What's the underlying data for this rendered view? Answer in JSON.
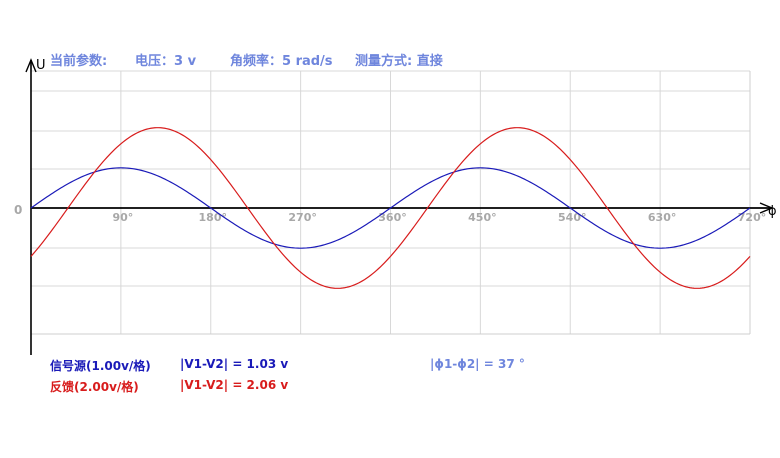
{
  "header": {
    "params_label": "当前参数:",
    "voltage": "电压：3 v",
    "angular_freq": "角频率：5 rad/s",
    "measure_mode": "测量方式: 直接"
  },
  "footer": {
    "signal_label": "信号源(1.00v/格)",
    "signal_diff": "|V1-V2| = 1.03 v",
    "feedback_label": "反馈(2.00v/格)",
    "feedback_diff": "|V1-V2| = 2.06 v",
    "phase_diff": "|ϕ1-ϕ2|  =  37 °"
  },
  "colors": {
    "signal": "#1a1ab8",
    "feedback": "#d81c1c",
    "tick_label": "#a8a8a8",
    "header_text": "#6f86dd"
  },
  "chart_data": {
    "type": "line",
    "y_axis_label": "U",
    "x_axis_label": "ϕ",
    "origin_label": "0",
    "x_unit": "degree",
    "x_range": [
      0,
      720
    ],
    "x_ticks": [
      90,
      180,
      270,
      360,
      450,
      540,
      630,
      720
    ],
    "x_tick_labels": [
      "90°",
      "180°",
      "270°",
      "360°",
      "450°",
      "540°",
      "630°",
      "720°"
    ],
    "y_range": [
      -3,
      3
    ],
    "grid": true,
    "series": [
      {
        "name": "信号源(1.00v/格)",
        "amplitude": 1.03,
        "volts_per_div": 1.0,
        "phase_deg": 0,
        "color": "#1a1ab8"
      },
      {
        "name": "反馈(2.00v/格)",
        "amplitude": 2.06,
        "volts_per_div": 2.0,
        "phase_deg": -37,
        "color": "#d81c1c"
      }
    ]
  }
}
